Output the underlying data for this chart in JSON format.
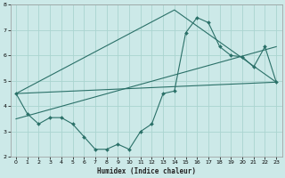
{
  "title": "",
  "xlabel": "Humidex (Indice chaleur)",
  "bg_color": "#cce9e8",
  "grid_color": "#aad4d0",
  "line_color": "#2a7068",
  "xlim": [
    -0.5,
    23.5
  ],
  "ylim": [
    2,
    8
  ],
  "xticks": [
    0,
    1,
    2,
    3,
    4,
    5,
    6,
    7,
    8,
    9,
    10,
    11,
    12,
    13,
    14,
    15,
    16,
    17,
    18,
    19,
    20,
    21,
    22,
    23
  ],
  "yticks": [
    2,
    3,
    4,
    5,
    6,
    7,
    8
  ],
  "line1_x": [
    0,
    1,
    2,
    3,
    4,
    5,
    6,
    7,
    8,
    9,
    10,
    11,
    12,
    13,
    14,
    15,
    16,
    17,
    18,
    19,
    20,
    21,
    22,
    23
  ],
  "line1_y": [
    4.5,
    3.7,
    3.3,
    3.55,
    3.55,
    3.3,
    2.8,
    2.3,
    2.3,
    2.5,
    2.3,
    3.0,
    3.3,
    4.5,
    4.6,
    6.9,
    7.5,
    7.3,
    6.35,
    6.0,
    5.95,
    5.55,
    6.35,
    4.95
  ],
  "line2_x": [
    0,
    14,
    23
  ],
  "line2_y": [
    4.5,
    7.8,
    4.95
  ],
  "line3_x": [
    0,
    23
  ],
  "line3_y": [
    3.5,
    6.35
  ],
  "line4_x": [
    0,
    23
  ],
  "line4_y": [
    4.5,
    4.95
  ]
}
